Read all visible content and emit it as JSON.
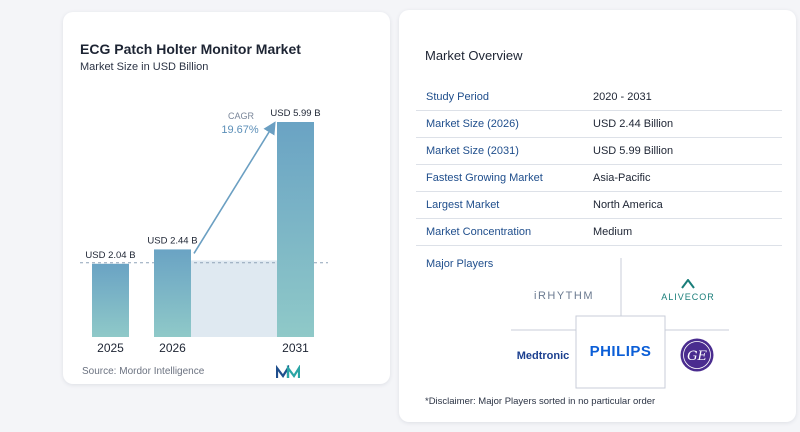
{
  "chart_data": {
    "type": "bar",
    "title": "ECG Patch Holter Monitor Market",
    "subtitle": "Market Size in USD Billion",
    "categories": [
      "2025",
      "2026",
      "2031"
    ],
    "values": [
      2.04,
      2.44,
      5.99
    ],
    "data_labels": [
      "USD 2.04 B",
      "USD 2.44 B",
      "USD 5.99 B"
    ],
    "annotation": {
      "label": "CAGR",
      "value": "19.67%"
    },
    "colors": {
      "bar_top": "#6aa3c4",
      "bar_bottom": "#8fc9c8",
      "band": "#dfe9f1",
      "arrow": "#6b9fc2"
    },
    "grid": false
  },
  "source": "Source:  Mordor Intelligence",
  "overview": {
    "title": "Market Overview",
    "rows": [
      {
        "label": "Study Period",
        "value": "2020 - 2031"
      },
      {
        "label": "Market Size (2026)",
        "value": "USD 2.44 Billion"
      },
      {
        "label": "Market Size (2031)",
        "value": "USD 5.99 Billion"
      },
      {
        "label": "Fastest Growing Market",
        "value": "Asia-Pacific"
      },
      {
        "label": "Largest Market",
        "value": "North America"
      },
      {
        "label": "Market Concentration",
        "value": "Medium"
      }
    ]
  },
  "players": {
    "title": "Major Players",
    "logos": [
      "iRHYTHM",
      "ALIVECOR",
      "Medtronic",
      "PHILIPS",
      "GE"
    ],
    "colors": {
      "irhythm": "#6b7a90",
      "alivecor": "#1a7e7a",
      "medtronic": "#1b3f8f",
      "philips": "#0b5ed7",
      "ge": "#4a2c8f"
    }
  },
  "disclaimer": "*Disclaimer: Major Players sorted in no particular order"
}
